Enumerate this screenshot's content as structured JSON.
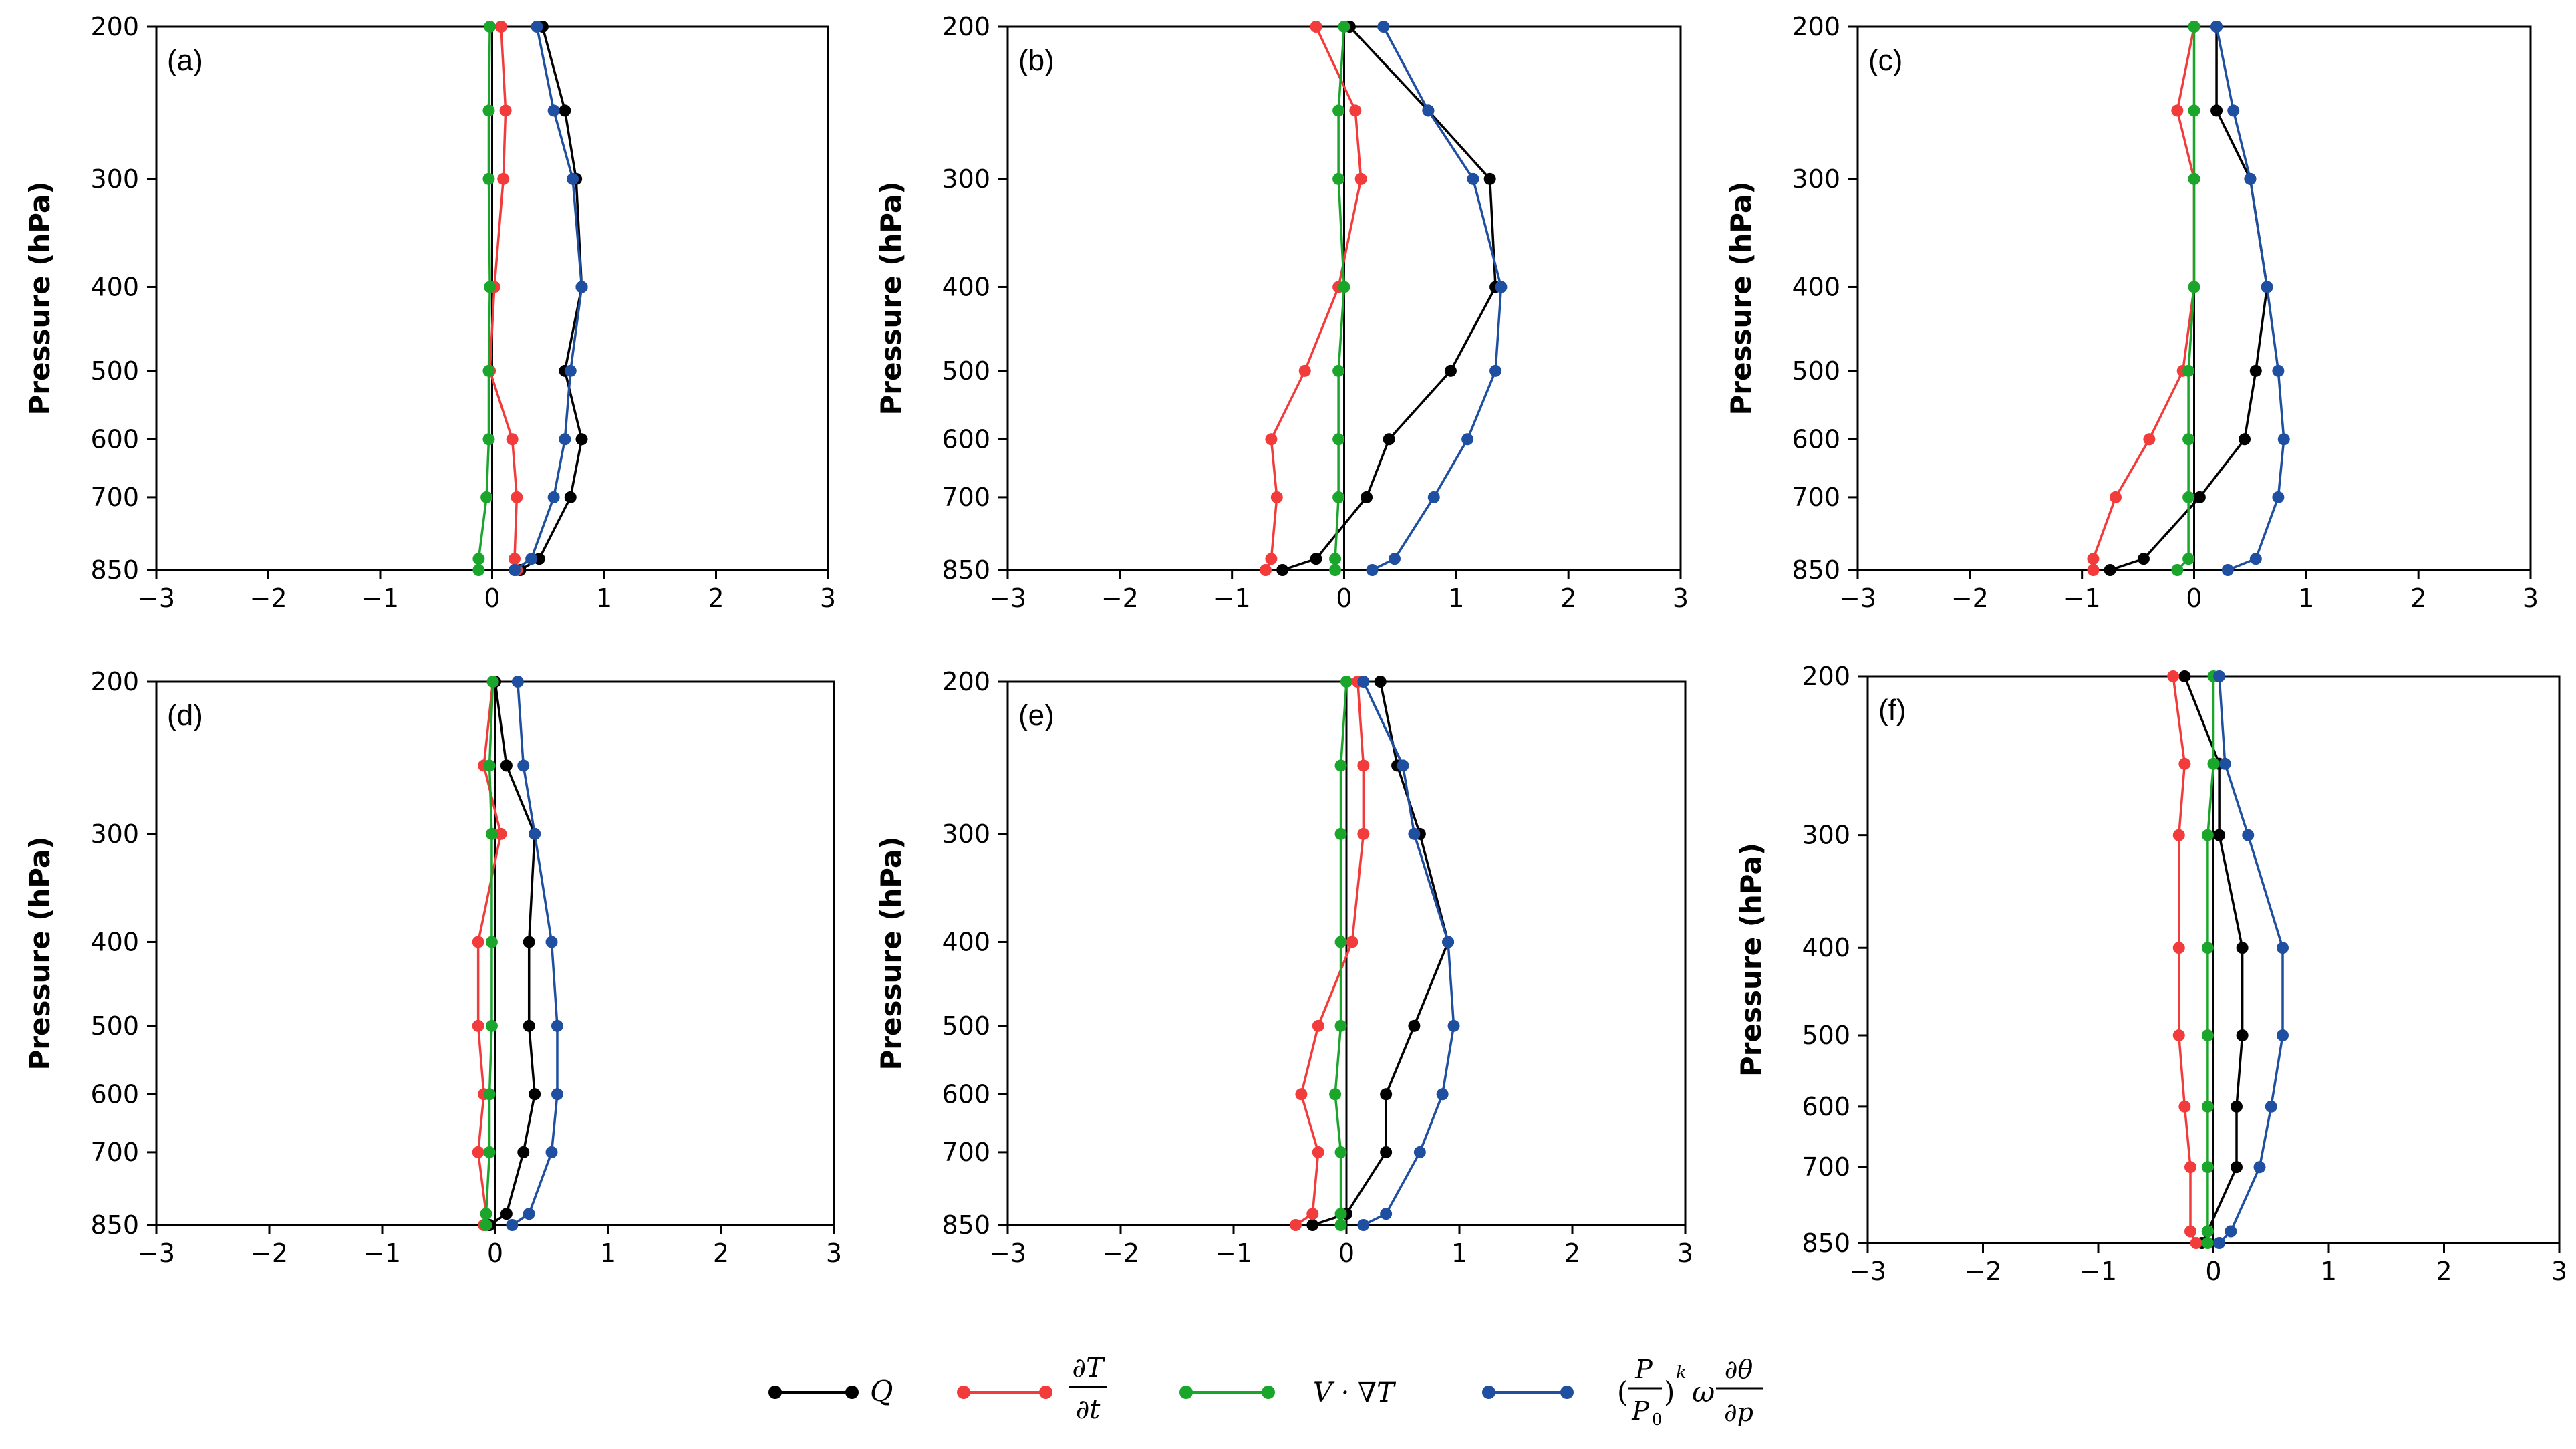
{
  "chart_data": [
    {
      "type": "line",
      "panel_label": "(a)",
      "ylabel": "Pressure (hPa)",
      "xlim": [
        -3,
        3
      ],
      "ylim": [
        850,
        200
      ],
      "x_ticks": [
        "−3",
        "−2",
        "−1",
        "0",
        "1",
        "2",
        "3"
      ],
      "y_ticks": [
        "200",
        "300",
        "400",
        "500",
        "600",
        "700",
        "850"
      ],
      "pressure_levels": [
        200,
        250,
        300,
        400,
        500,
        600,
        700,
        825,
        850
      ],
      "series": [
        {
          "name": "Q",
          "color": "#000000",
          "values": [
            0.45,
            0.65,
            0.75,
            0.8,
            0.65,
            0.8,
            0.7,
            0.42,
            0.25
          ]
        },
        {
          "name": "dT/dt",
          "color": "#f23b3b",
          "values": [
            0.08,
            0.12,
            0.1,
            0.02,
            -0.02,
            0.18,
            0.22,
            0.2,
            0.22
          ]
        },
        {
          "name": "V·∇T",
          "color": "#1aa62a",
          "values": [
            -0.02,
            -0.03,
            -0.03,
            -0.02,
            -0.03,
            -0.03,
            -0.05,
            -0.12,
            -0.12
          ]
        },
        {
          "name": "(P/P0)^k ω ∂θ/∂p",
          "color": "#1f4fa0",
          "values": [
            0.4,
            0.55,
            0.72,
            0.8,
            0.7,
            0.65,
            0.55,
            0.35,
            0.2
          ]
        }
      ]
    },
    {
      "type": "line",
      "panel_label": "(b)",
      "ylabel": "Pressure (hPa)",
      "xlim": [
        -3,
        3
      ],
      "ylim": [
        850,
        200
      ],
      "x_ticks": [
        "−3",
        "−2",
        "−1",
        "0",
        "1",
        "2",
        "3"
      ],
      "y_ticks": [
        "200",
        "300",
        "400",
        "500",
        "600",
        "700",
        "850"
      ],
      "pressure_levels": [
        200,
        250,
        300,
        400,
        500,
        600,
        700,
        825,
        850
      ],
      "series": [
        {
          "name": "Q",
          "color": "#000000",
          "values": [
            0.05,
            0.75,
            1.3,
            1.35,
            0.95,
            0.4,
            0.2,
            -0.25,
            -0.55
          ]
        },
        {
          "name": "dT/dt",
          "color": "#f23b3b",
          "values": [
            -0.25,
            0.1,
            0.15,
            -0.05,
            -0.35,
            -0.65,
            -0.6,
            -0.65,
            -0.7
          ]
        },
        {
          "name": "V·∇T",
          "color": "#1aa62a",
          "values": [
            0.0,
            -0.05,
            -0.05,
            0.0,
            -0.05,
            -0.05,
            -0.05,
            -0.08,
            -0.08
          ]
        },
        {
          "name": "(P/P0)^k ω ∂θ/∂p",
          "color": "#1f4fa0",
          "values": [
            0.35,
            0.75,
            1.15,
            1.4,
            1.35,
            1.1,
            0.8,
            0.45,
            0.25
          ]
        }
      ]
    },
    {
      "type": "line",
      "panel_label": "(c)",
      "ylabel": "Pressure (hPa)",
      "xlim": [
        -3,
        3
      ],
      "ylim": [
        850,
        200
      ],
      "x_ticks": [
        "−3",
        "−2",
        "−1",
        "0",
        "1",
        "2",
        "3"
      ],
      "y_ticks": [
        "200",
        "300",
        "400",
        "500",
        "600",
        "700",
        "850"
      ],
      "pressure_levels": [
        200,
        250,
        300,
        400,
        500,
        600,
        700,
        825,
        850
      ],
      "series": [
        {
          "name": "Q",
          "color": "#000000",
          "values": [
            0.2,
            0.2,
            0.5,
            0.65,
            0.55,
            0.45,
            0.05,
            -0.45,
            -0.75
          ]
        },
        {
          "name": "dT/dt",
          "color": "#f23b3b",
          "values": [
            0.0,
            -0.15,
            0.0,
            0.0,
            -0.1,
            -0.4,
            -0.7,
            -0.9,
            -0.9
          ]
        },
        {
          "name": "V·∇T",
          "color": "#1aa62a",
          "values": [
            0.0,
            0.0,
            0.0,
            0.0,
            -0.05,
            -0.05,
            -0.05,
            -0.05,
            -0.15
          ]
        },
        {
          "name": "(P/P0)^k ω ∂θ/∂p",
          "color": "#1f4fa0",
          "values": [
            0.2,
            0.35,
            0.5,
            0.65,
            0.75,
            0.8,
            0.75,
            0.55,
            0.3
          ]
        }
      ]
    },
    {
      "type": "line",
      "panel_label": "(d)",
      "ylabel": "Pressure (hPa)",
      "xlim": [
        -3,
        3
      ],
      "ylim": [
        850,
        200
      ],
      "x_ticks": [
        "−3",
        "−2",
        "−1",
        "0",
        "1",
        "2",
        "3"
      ],
      "y_ticks": [
        "200",
        "300",
        "400",
        "500",
        "600",
        "700",
        "850"
      ],
      "pressure_levels": [
        200,
        250,
        300,
        400,
        500,
        600,
        700,
        825,
        850
      ],
      "series": [
        {
          "name": "Q",
          "color": "#000000",
          "values": [
            0.0,
            0.1,
            0.35,
            0.3,
            0.3,
            0.35,
            0.25,
            0.1,
            -0.05
          ]
        },
        {
          "name": "dT/dt",
          "color": "#f23b3b",
          "values": [
            -0.02,
            -0.1,
            0.05,
            -0.15,
            -0.15,
            -0.1,
            -0.15,
            -0.08,
            -0.1
          ]
        },
        {
          "name": "V·∇T",
          "color": "#1aa62a",
          "values": [
            -0.02,
            -0.05,
            -0.03,
            -0.03,
            -0.03,
            -0.05,
            -0.05,
            -0.08,
            -0.08
          ]
        },
        {
          "name": "(P/P0)^k ω ∂θ/∂p",
          "color": "#1f4fa0",
          "values": [
            0.2,
            0.25,
            0.35,
            0.5,
            0.55,
            0.55,
            0.5,
            0.3,
            0.15
          ]
        }
      ]
    },
    {
      "type": "line",
      "panel_label": "(e)",
      "ylabel": "Pressure (hPa)",
      "xlim": [
        -3,
        3
      ],
      "ylim": [
        850,
        200
      ],
      "x_ticks": [
        "−3",
        "−2",
        "−1",
        "0",
        "1",
        "2",
        "3"
      ],
      "y_ticks": [
        "200",
        "300",
        "400",
        "500",
        "600",
        "700",
        "850"
      ],
      "pressure_levels": [
        200,
        250,
        300,
        400,
        500,
        600,
        700,
        825,
        850
      ],
      "series": [
        {
          "name": "Q",
          "color": "#000000",
          "values": [
            0.3,
            0.45,
            0.65,
            0.9,
            0.6,
            0.35,
            0.35,
            0.0,
            -0.3
          ]
        },
        {
          "name": "dT/dt",
          "color": "#f23b3b",
          "values": [
            0.1,
            0.15,
            0.15,
            0.05,
            -0.25,
            -0.4,
            -0.25,
            -0.3,
            -0.45
          ]
        },
        {
          "name": "V·∇T",
          "color": "#1aa62a",
          "values": [
            0.0,
            -0.05,
            -0.05,
            -0.05,
            -0.05,
            -0.1,
            -0.05,
            -0.05,
            -0.05
          ]
        },
        {
          "name": "(P/P0)^k ω ∂θ/∂p",
          "color": "#1f4fa0",
          "values": [
            0.15,
            0.5,
            0.6,
            0.9,
            0.95,
            0.85,
            0.65,
            0.35,
            0.15
          ]
        }
      ]
    },
    {
      "type": "line",
      "panel_label": "(f)",
      "ylabel": "Pressure (hPa)",
      "xlim": [
        -3,
        3
      ],
      "ylim": [
        850,
        200
      ],
      "x_ticks": [
        "−3",
        "−2",
        "−1",
        "0",
        "1",
        "2",
        "3"
      ],
      "y_ticks": [
        "200",
        "300",
        "400",
        "500",
        "600",
        "700",
        "850"
      ],
      "pressure_levels": [
        200,
        250,
        300,
        400,
        500,
        600,
        700,
        825,
        850
      ],
      "series": [
        {
          "name": "Q",
          "color": "#000000",
          "values": [
            -0.25,
            0.05,
            0.05,
            0.25,
            0.25,
            0.2,
            0.2,
            -0.05,
            -0.1
          ]
        },
        {
          "name": "dT/dt",
          "color": "#f23b3b",
          "values": [
            -0.35,
            -0.25,
            -0.3,
            -0.3,
            -0.3,
            -0.25,
            -0.2,
            -0.2,
            -0.15
          ]
        },
        {
          "name": "V·∇T",
          "color": "#1aa62a",
          "values": [
            0.0,
            0.0,
            -0.05,
            -0.05,
            -0.05,
            -0.05,
            -0.05,
            -0.05,
            -0.05
          ]
        },
        {
          "name": "(P/P0)^k ω ∂θ/∂p",
          "color": "#1f4fa0",
          "values": [
            0.05,
            0.1,
            0.3,
            0.6,
            0.6,
            0.5,
            0.4,
            0.15,
            0.05
          ]
        }
      ]
    }
  ],
  "legend": {
    "q": "Q",
    "dtdt_num": "∂T",
    "dtdt_den": "∂t",
    "adv": "V · ∇T",
    "adia_paren_open": "(",
    "adia_p": "P",
    "adia_p0": "P",
    "adia_p0_sub": "0",
    "adia_paren_close": ")",
    "adia_k": "k",
    "adia_omega": "ω",
    "adia_num": "∂θ",
    "adia_den": "∂p"
  }
}
